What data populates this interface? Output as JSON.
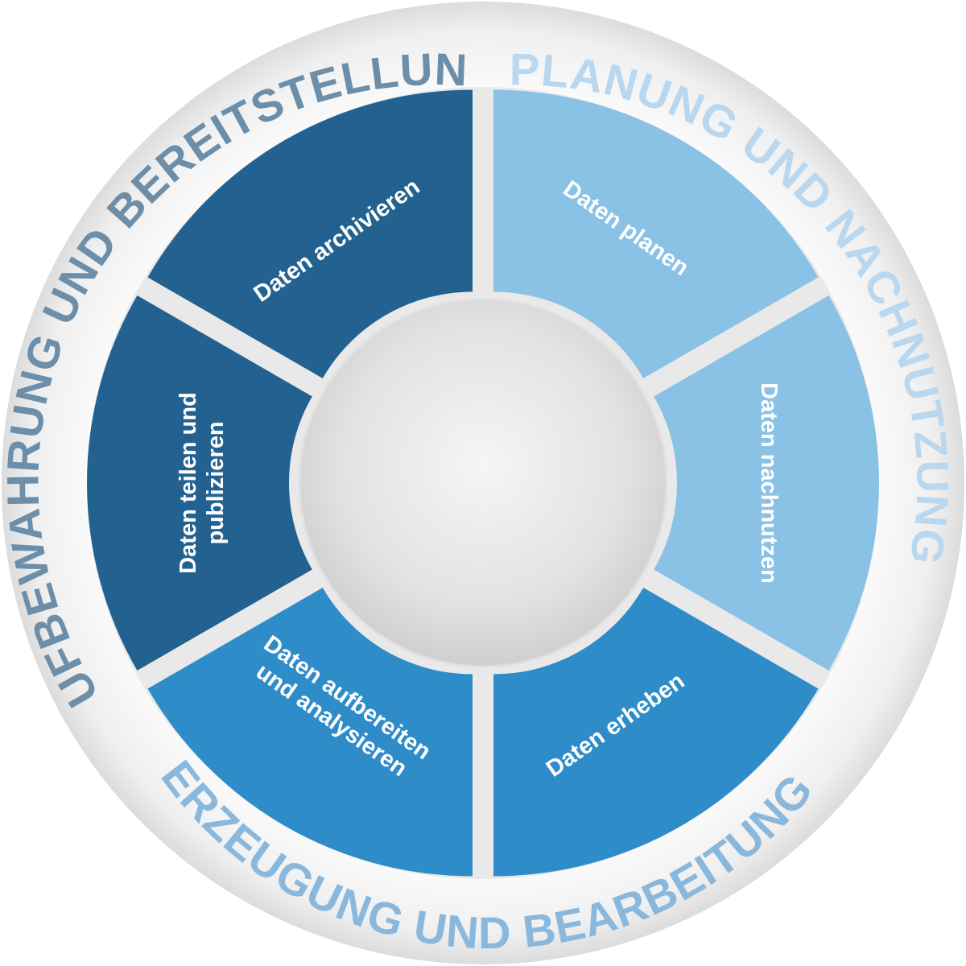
{
  "phases": [
    {
      "label": "PLANUNG UND NACHNUTZUNG",
      "color": "#b9d7ee"
    },
    {
      "label": "ERZEUGUNG UND BEARBEITUNG",
      "color": "#8ab8dd"
    },
    {
      "label": "AUFBEWAHRUNG UND BEREITSTELLUNG",
      "color": "#6d8ea9"
    }
  ],
  "segments": [
    {
      "label_lines": [
        "Daten planen"
      ],
      "color": "#8ac2e6"
    },
    {
      "label_lines": [
        "Daten nachnutzen"
      ],
      "color": "#8ac2e6"
    },
    {
      "label_lines": [
        "Daten erheben"
      ],
      "color": "#2e8cc9"
    },
    {
      "label_lines": [
        "Daten aufbereiten",
        "und analysieren"
      ],
      "color": "#2e8cc9"
    },
    {
      "label_lines": [
        "Daten teilen und",
        "publizieren"
      ],
      "color": "#236290"
    },
    {
      "label_lines": [
        "Daten archivieren"
      ],
      "color": "#236290"
    }
  ]
}
